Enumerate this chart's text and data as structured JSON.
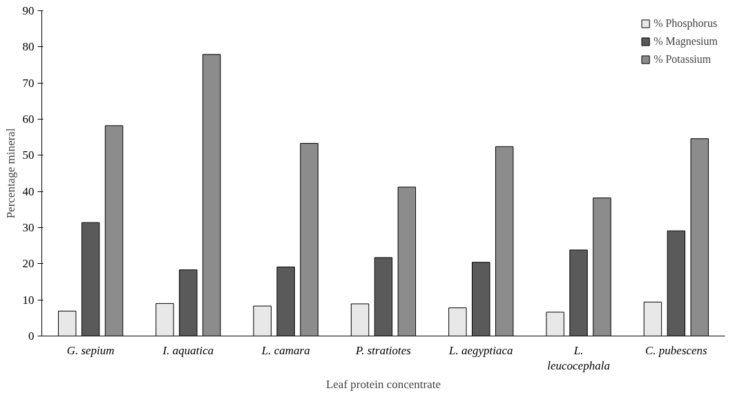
{
  "chart_data": {
    "type": "bar",
    "xlabel": "Leaf protein concentrate",
    "ylabel": "Percentage mineral",
    "categories": [
      "G. sepium",
      "I. aquatica",
      "L. camara",
      "P. stratiotes",
      "L. aegyptiaca",
      "L. leucocephala",
      "C. pubescens"
    ],
    "series": [
      {
        "name": "% Phosphorus",
        "color": "#e8e8e8",
        "values": [
          6.9,
          9.0,
          8.3,
          8.9,
          7.8,
          6.6,
          9.4
        ]
      },
      {
        "name": "% Magnesium",
        "color": "#5a5a5a",
        "values": [
          31.4,
          18.3,
          19.1,
          21.7,
          20.4,
          23.8,
          29.1
        ]
      },
      {
        "name": "% Potassium",
        "color": "#8c8c8c",
        "values": [
          58.2,
          77.9,
          53.3,
          41.2,
          52.4,
          38.2,
          54.6
        ]
      }
    ],
    "ylim": [
      0,
      90
    ],
    "yticks": [
      0,
      10,
      20,
      30,
      40,
      50,
      60,
      70,
      80,
      90
    ],
    "grid": false,
    "legend": "top right"
  }
}
